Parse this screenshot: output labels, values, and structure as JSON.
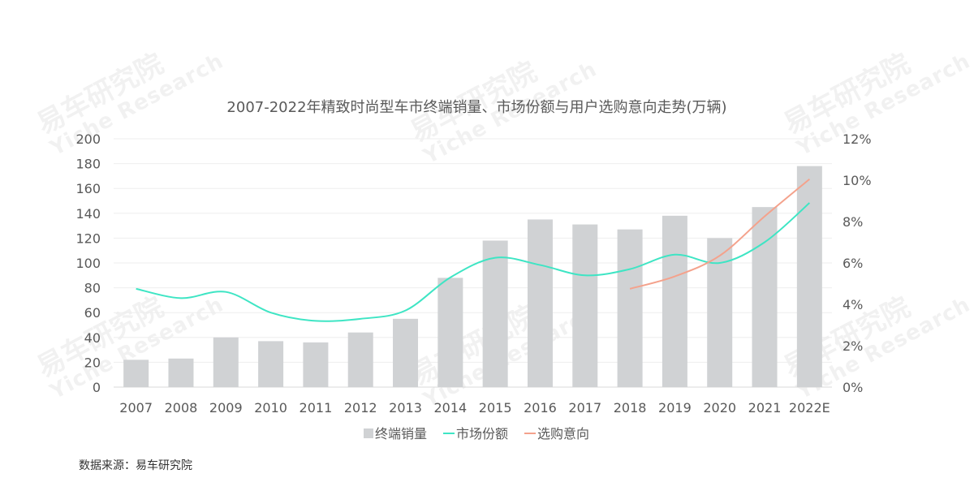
{
  "watermark": {
    "name": "易车研究院",
    "name_en": "Yiche Research"
  },
  "source_note": "数据来源：易车研究院",
  "chart_data": {
    "type": "bar",
    "title": "2007-2022年精致时尚型车市终端销量、市场份额与用户选购意向走势(万辆)",
    "categories": [
      "2007",
      "2008",
      "2009",
      "2010",
      "2011",
      "2012",
      "2013",
      "2014",
      "2015",
      "2016",
      "2017",
      "2018",
      "2019",
      "2020",
      "2021",
      "2022E"
    ],
    "y_left": {
      "min": 0,
      "max": 200,
      "ticks": [
        "0",
        "20",
        "40",
        "60",
        "80",
        "100",
        "120",
        "140",
        "160",
        "180",
        "200"
      ]
    },
    "y_right": {
      "min": 0,
      "max": 12,
      "ticks": [
        "0%",
        "2%",
        "4%",
        "6%",
        "8%",
        "10%",
        "12%"
      ]
    },
    "grid": true,
    "legend_position": "bottom",
    "series": [
      {
        "name": "终端销量",
        "kind": "bar",
        "axis": "left",
        "color": "#d0d2d4",
        "values": [
          22,
          23,
          40,
          37,
          36,
          44,
          55,
          88,
          118,
          135,
          131,
          127,
          138,
          120,
          145,
          178
        ]
      },
      {
        "name": "市场份额",
        "kind": "line",
        "axis": "right",
        "color": "#3ee5c4",
        "values": [
          4.75,
          4.3,
          4.6,
          3.6,
          3.2,
          3.3,
          3.7,
          5.3,
          6.25,
          5.9,
          5.4,
          5.7,
          6.4,
          6.0,
          7.0,
          8.9
        ]
      },
      {
        "name": "选购意向",
        "kind": "line",
        "axis": "right",
        "color": "#f4a28c",
        "values": [
          null,
          null,
          null,
          null,
          null,
          null,
          null,
          null,
          null,
          null,
          null,
          4.75,
          5.35,
          6.35,
          8.25,
          10.05
        ]
      }
    ]
  }
}
